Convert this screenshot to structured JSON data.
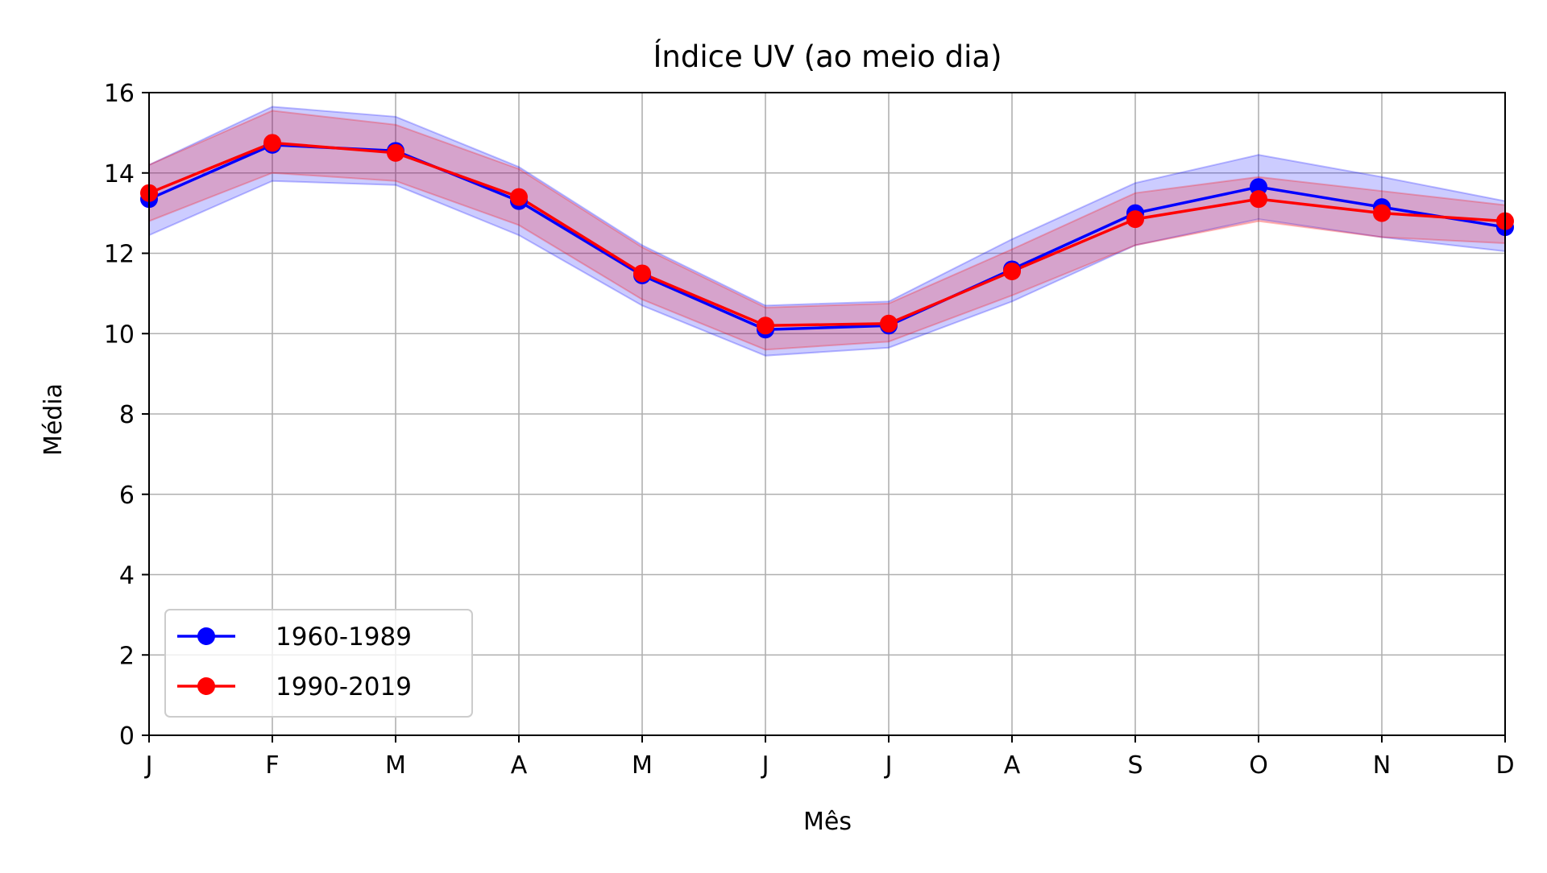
{
  "chart_data": {
    "type": "line",
    "title": "Índice UV (ao meio dia)",
    "xlabel": "Mês",
    "ylabel": "Média",
    "categories": [
      "J",
      "F",
      "M",
      "A",
      "M",
      "J",
      "J",
      "A",
      "S",
      "O",
      "N",
      "D"
    ],
    "ylim": [
      0,
      16
    ],
    "yticks": [
      0,
      2,
      4,
      6,
      8,
      10,
      12,
      14,
      16
    ],
    "grid": true,
    "legend_position": "lower-left",
    "series": [
      {
        "name": "1960-1989",
        "color": "#0000ff",
        "values": [
          13.35,
          14.7,
          14.55,
          13.3,
          11.45,
          10.1,
          10.2,
          11.6,
          13.0,
          13.65,
          13.15,
          12.65
        ],
        "band_lower": [
          12.45,
          13.8,
          13.7,
          12.45,
          10.7,
          9.45,
          9.65,
          10.8,
          12.2,
          12.85,
          12.4,
          12.05
        ],
        "band_upper": [
          14.2,
          15.65,
          15.4,
          14.15,
          12.2,
          10.7,
          10.8,
          12.35,
          13.75,
          14.45,
          13.9,
          13.3
        ]
      },
      {
        "name": "1990-2019",
        "color": "#ff0000",
        "values": [
          13.5,
          14.75,
          14.5,
          13.4,
          11.5,
          10.2,
          10.25,
          11.55,
          12.85,
          13.35,
          13.0,
          12.8
        ],
        "band_lower": [
          12.8,
          14.0,
          13.8,
          12.7,
          10.85,
          9.6,
          9.8,
          10.95,
          12.2,
          12.8,
          12.4,
          12.25
        ],
        "band_upper": [
          14.2,
          15.55,
          15.2,
          14.1,
          12.15,
          10.65,
          10.75,
          12.1,
          13.5,
          13.9,
          13.55,
          13.2
        ]
      }
    ]
  }
}
